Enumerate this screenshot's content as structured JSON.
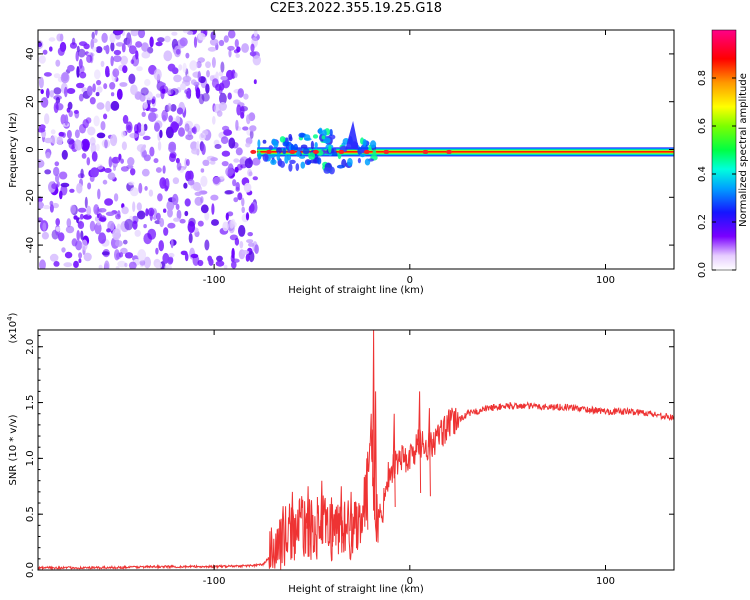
{
  "title": "C2E3.2022.355.19.25.G18",
  "chart_data": [
    {
      "type": "heatmap",
      "xlabel": "Height of straight line (km)",
      "ylabel": "Frequency (Hz)",
      "xlim": [
        -190,
        135
      ],
      "ylim": [
        -50,
        50
      ],
      "x_ticks": [
        -100,
        0,
        100
      ],
      "x_tick_labels": [
        "-100",
        "0",
        "100"
      ],
      "y_ticks": [
        -40,
        -20,
        0,
        20,
        40
      ],
      "y_tick_labels": [
        "-40",
        "-20",
        "0",
        "20",
        "40"
      ],
      "colorbar": {
        "label": "Normalized spectral amplitude",
        "range": [
          0,
          1
        ],
        "ticks": [
          0,
          0.2,
          0.4,
          0.6,
          0.8
        ],
        "tick_labels": [
          "0.0",
          "0.2",
          "0.4",
          "0.6",
          "0.8"
        ]
      },
      "features": [
        {
          "kind": "noise",
          "x_range": [
            -190,
            -78
          ],
          "freq_range": [
            -50,
            50
          ],
          "amplitude_range": [
            0.05,
            0.3
          ]
        },
        {
          "kind": "carrier",
          "x_range": [
            -78,
            135
          ],
          "freq": -1,
          "amplitude": 1.0
        }
      ]
    },
    {
      "type": "line",
      "xlabel": "Height of straight line (km)",
      "ylabel": "SNR (10 * v/v)",
      "y_multiplier_label": "(x10",
      "y_multiplier_exp": "4",
      "xlim": [
        -190,
        135
      ],
      "ylim": [
        0,
        2.15
      ],
      "x_ticks": [
        -100,
        0,
        100
      ],
      "x_tick_labels": [
        "-100",
        "0",
        "100"
      ],
      "y_ticks": [
        0,
        0.5,
        1.0,
        1.5,
        2.0
      ],
      "y_tick_labels": [
        "0.0",
        "0.5",
        "1.0",
        "1.5",
        "2.0"
      ],
      "line_color": "#ee3333",
      "x": [
        -190,
        -160,
        -130,
        -100,
        -80,
        -75,
        -70,
        -65,
        -60,
        -55,
        -50,
        -45,
        -40,
        -35,
        -30,
        -25,
        -22,
        -20,
        -18,
        -15,
        -12,
        -10,
        -5,
        0,
        5,
        10,
        15,
        20,
        30,
        40,
        50,
        60,
        70,
        80,
        90,
        100,
        110,
        120,
        130,
        135
      ],
      "values": [
        0.02,
        0.02,
        0.03,
        0.03,
        0.04,
        0.05,
        0.15,
        0.3,
        0.35,
        0.4,
        0.35,
        0.4,
        0.35,
        0.4,
        0.35,
        0.5,
        0.6,
        1.5,
        0.5,
        0.4,
        0.8,
        0.9,
        1.0,
        1.0,
        1.15,
        1.1,
        1.2,
        1.3,
        1.4,
        1.45,
        1.47,
        1.47,
        1.46,
        1.46,
        1.44,
        1.42,
        1.42,
        1.41,
        1.38,
        1.36
      ],
      "spikes": [
        {
          "x": -60,
          "value": 0.7
        },
        {
          "x": -52,
          "value": 0.75
        },
        {
          "x": -45,
          "value": 0.8
        },
        {
          "x": -40,
          "value": 0.65
        },
        {
          "x": -35,
          "value": 0.75
        },
        {
          "x": -30,
          "value": 0.7
        },
        {
          "x": -22,
          "value": 1.0
        },
        {
          "x": -18.5,
          "value": 2.15
        },
        {
          "x": -17.5,
          "value": 1.6
        },
        {
          "x": -8,
          "value": 1.4
        },
        {
          "x": 5,
          "value": 1.6
        },
        {
          "x": 10,
          "value": 1.45
        }
      ]
    }
  ]
}
